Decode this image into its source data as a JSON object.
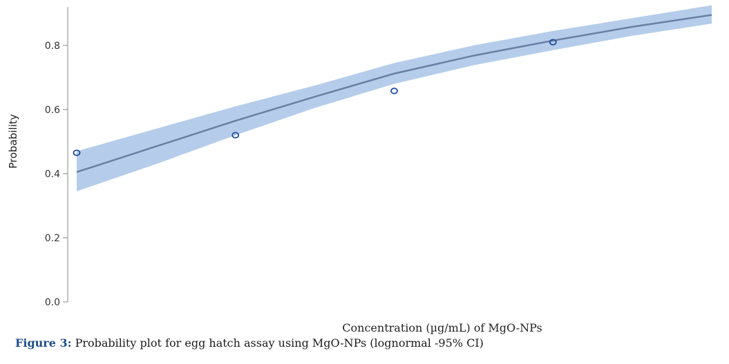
{
  "caption": {
    "label": "Figure 3:",
    "text": "Probability plot for egg hatch assay using MgO-NPs (lognormal -95% CI)"
  },
  "chart_data": {
    "type": "line",
    "title": "",
    "xlabel": "Concentration (µg/mL) of MgO-NPs",
    "ylabel": "Probability",
    "ylim": [
      0,
      0.92
    ],
    "yticks": [
      "0.0",
      "0.2",
      "0.4",
      "0.6",
      "0.8"
    ],
    "ytick_values": [
      0,
      0.2,
      0.4,
      0.6,
      0.8
    ],
    "xlim": [
      0,
      4
    ],
    "grid": false,
    "colors": {
      "fit": "#6a7fa3",
      "band": "#b5cdea",
      "points": "#1f4fa0",
      "axis": "#888888"
    },
    "points": {
      "x": [
        0,
        1,
        2,
        3
      ],
      "y": [
        0.465,
        0.52,
        0.658,
        0.81
      ]
    },
    "fit": {
      "x": [
        0,
        0.5,
        1,
        1.5,
        2,
        2.5,
        3,
        3.5,
        4
      ],
      "y": [
        0.405,
        0.485,
        0.565,
        0.64,
        0.712,
        0.768,
        0.815,
        0.858,
        0.895
      ]
    },
    "ci_upper": [
      0.47,
      0.54,
      0.61,
      0.675,
      0.745,
      0.8,
      0.845,
      0.885,
      0.925
    ],
    "ci_lower": [
      0.345,
      0.43,
      0.52,
      0.605,
      0.68,
      0.738,
      0.785,
      0.83,
      0.868
    ]
  }
}
